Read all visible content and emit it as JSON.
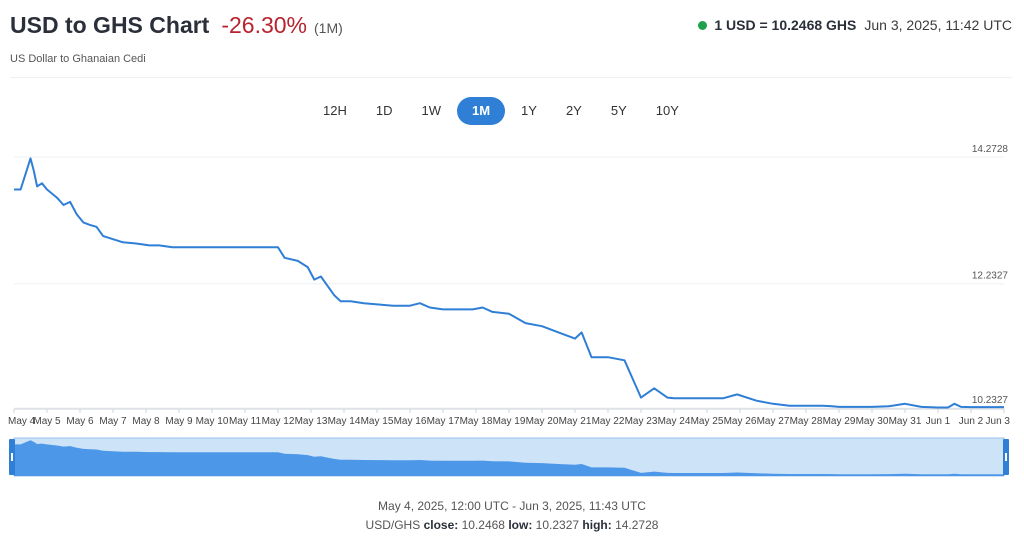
{
  "header": {
    "title": "USD to GHS Chart",
    "change": "-26.30%",
    "range": "(1M)",
    "subtitle": "US Dollar to Ghanaian Cedi",
    "rate": "1 USD = 10.2468 GHS",
    "timestamp": "Jun 3, 2025, 11:42 UTC"
  },
  "tabs": [
    {
      "label": "12H",
      "active": false
    },
    {
      "label": "1D",
      "active": false
    },
    {
      "label": "1W",
      "active": false
    },
    {
      "label": "1M",
      "active": true
    },
    {
      "label": "1Y",
      "active": false
    },
    {
      "label": "2Y",
      "active": false
    },
    {
      "label": "5Y",
      "active": false
    },
    {
      "label": "10Y",
      "active": false
    }
  ],
  "colors": {
    "line": "#2f7fd6",
    "fill": "#4c97e8",
    "navigator_bg": "#cde3f8",
    "accent": "#2f7fd6",
    "negative": "#b8232f",
    "live": "#1ea14a"
  },
  "chart_data": {
    "type": "line",
    "title": "",
    "xlabel": "",
    "ylabel": "",
    "ylim": [
      10.2327,
      14.2728
    ],
    "y_ticks": [
      "14.2728",
      "12.2327",
      "10.2327"
    ],
    "x_tick_labels": [
      "May 4",
      "May 5",
      "May 6",
      "May 7",
      "May 8",
      "May 9",
      "May 10",
      "May 11",
      "May 12",
      "May 13",
      "May 14",
      "May 15",
      "May 16",
      "May 17",
      "May 18",
      "May 19",
      "May 20",
      "May 21",
      "May 22",
      "May 23",
      "May 24",
      "May 25",
      "May 26",
      "May 27",
      "May 28",
      "May 29",
      "May 30",
      "May 31",
      "Jun 1",
      "Jun 2",
      "Jun 3"
    ],
    "grid": true,
    "series": [
      {
        "x": [
          0,
          0.2,
          0.5,
          0.6,
          0.7,
          0.85,
          1.0,
          1.3,
          1.5,
          1.7,
          1.9,
          2.1,
          2.3,
          2.5,
          2.7,
          3,
          3.3,
          3.7,
          4.1,
          4.4,
          4.8,
          5.2,
          5.6,
          6,
          6.5,
          7,
          7.5,
          8.0,
          8.2,
          8.6,
          8.9,
          9.1,
          9.3,
          9.5,
          9.7,
          9.9,
          10.2,
          10.6,
          11,
          11.5,
          12,
          12.3,
          12.6,
          13,
          13.5,
          13.9,
          14.2,
          14.5,
          15,
          15.5,
          16,
          16.5,
          17,
          17.2,
          17.5,
          18,
          18.5,
          19,
          19.4,
          19.8,
          20,
          20.4,
          20.6,
          21,
          21.5,
          21.9,
          21.92,
          22.5,
          23,
          23.5,
          24,
          24.5,
          24.8,
          25,
          25.5,
          26,
          26.5,
          27,
          27.5,
          28,
          28.3,
          28.5,
          28.7,
          29,
          29.5,
          30
        ],
        "y": [
          13.75,
          13.75,
          14.25,
          14.05,
          13.8,
          13.85,
          13.75,
          13.62,
          13.5,
          13.55,
          13.35,
          13.22,
          13.18,
          13.15,
          13.0,
          12.95,
          12.9,
          12.88,
          12.85,
          12.85,
          12.82,
          12.82,
          12.82,
          12.82,
          12.82,
          12.82,
          12.82,
          12.82,
          12.65,
          12.6,
          12.5,
          12.3,
          12.35,
          12.2,
          12.05,
          11.95,
          11.95,
          11.92,
          11.9,
          11.88,
          11.88,
          11.92,
          11.85,
          11.82,
          11.82,
          11.82,
          11.85,
          11.78,
          11.75,
          11.6,
          11.55,
          11.45,
          11.35,
          11.45,
          11.05,
          11.05,
          11.0,
          10.4,
          10.55,
          10.4,
          10.39,
          10.39,
          10.39,
          10.39,
          10.39,
          10.45,
          10.45,
          10.35,
          10.3,
          10.27,
          10.27,
          10.27,
          10.26,
          10.25,
          10.25,
          10.25,
          10.26,
          10.3,
          10.25,
          10.24,
          10.24,
          10.3,
          10.25,
          10.2468,
          10.2468,
          10.2468
        ]
      }
    ]
  },
  "navigator": {
    "left_handle": "left-handle",
    "right_handle": "right-handle"
  },
  "footer": {
    "range_text": "May 4, 2025, 12:00 UTC - Jun 3, 2025, 11:43 UTC",
    "pair": "USD/GHS",
    "close_label": "close:",
    "close": "10.2468",
    "low_label": "low:",
    "low": "10.2327",
    "high_label": "high:",
    "high": "14.2728"
  }
}
